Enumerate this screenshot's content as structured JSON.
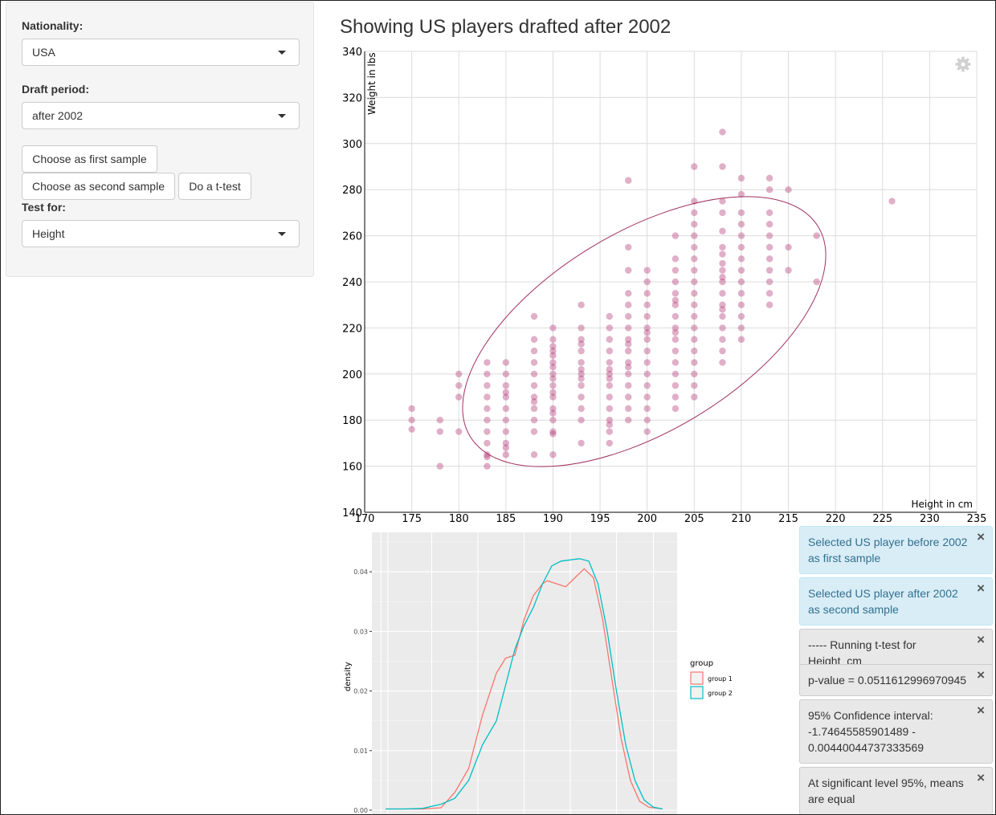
{
  "sidebar": {
    "nationality": {
      "label": "Nationality:",
      "value": "USA"
    },
    "draft_period": {
      "label": "Draft period:",
      "value": "after 2002"
    },
    "buttons": {
      "first": "Choose as first sample",
      "second": "Choose as second sample",
      "ttest": "Do a t-test"
    },
    "test_for": {
      "label": "Test for:",
      "value": "Height"
    }
  },
  "plot": {
    "title": "Showing US players drafted after 2002",
    "icon": "gear-icon"
  },
  "chart_data": [
    {
      "type": "scatter",
      "xlabel": "Height in cm",
      "ylabel": "Weight in lbs",
      "xlim": [
        170,
        235
      ],
      "ylim": [
        140,
        340
      ],
      "x_ticks": [
        "170",
        "175",
        "180",
        "185",
        "190",
        "195",
        "200",
        "205",
        "210",
        "215",
        "220",
        "225",
        "230",
        "235"
      ],
      "y_ticks": [
        "140",
        "160",
        "180",
        "200",
        "220",
        "240",
        "260",
        "280",
        "300",
        "320",
        "340"
      ],
      "grid": true,
      "point_color": "#b5407b",
      "ellipse": {
        "center": [
          200.5,
          223
        ],
        "semi_axes_px": null,
        "color": "#a0305f"
      },
      "points": [
        [
          175,
          185
        ],
        [
          175,
          180
        ],
        [
          175,
          176
        ],
        [
          178,
          180
        ],
        [
          178,
          175
        ],
        [
          178,
          160
        ],
        [
          180,
          200
        ],
        [
          180,
          195
        ],
        [
          180,
          190
        ],
        [
          180,
          175
        ],
        [
          183,
          205
        ],
        [
          183,
          200
        ],
        [
          183,
          195
        ],
        [
          183,
          190
        ],
        [
          183,
          185
        ],
        [
          183,
          180
        ],
        [
          183,
          175
        ],
        [
          183,
          170
        ],
        [
          183,
          165
        ],
        [
          183,
          164
        ],
        [
          183,
          160
        ],
        [
          185,
          205
        ],
        [
          185,
          200
        ],
        [
          185,
          195
        ],
        [
          185,
          192
        ],
        [
          185,
          190
        ],
        [
          185,
          185
        ],
        [
          185,
          180
        ],
        [
          185,
          175
        ],
        [
          185,
          170
        ],
        [
          185,
          168
        ],
        [
          185,
          165
        ],
        [
          188,
          225
        ],
        [
          188,
          215
        ],
        [
          188,
          210
        ],
        [
          188,
          205
        ],
        [
          188,
          200
        ],
        [
          188,
          195
        ],
        [
          188,
          190
        ],
        [
          188,
          188
        ],
        [
          188,
          185
        ],
        [
          188,
          180
        ],
        [
          188,
          175
        ],
        [
          188,
          165
        ],
        [
          190,
          220
        ],
        [
          190,
          215
        ],
        [
          190,
          212
        ],
        [
          190,
          210
        ],
        [
          190,
          208
        ],
        [
          190,
          205
        ],
        [
          190,
          203
        ],
        [
          190,
          200
        ],
        [
          190,
          198
        ],
        [
          190,
          195
        ],
        [
          190,
          192
        ],
        [
          190,
          190
        ],
        [
          190,
          185
        ],
        [
          190,
          183
        ],
        [
          190,
          180
        ],
        [
          190,
          175
        ],
        [
          190,
          174
        ],
        [
          190,
          165
        ],
        [
          193,
          230
        ],
        [
          193,
          220
        ],
        [
          193,
          215
        ],
        [
          193,
          213
        ],
        [
          193,
          210
        ],
        [
          193,
          205
        ],
        [
          193,
          202
        ],
        [
          193,
          200
        ],
        [
          193,
          198
        ],
        [
          193,
          195
        ],
        [
          193,
          190
        ],
        [
          193,
          185
        ],
        [
          193,
          180
        ],
        [
          193,
          170
        ],
        [
          196,
          225
        ],
        [
          196,
          220
        ],
        [
          196,
          215
        ],
        [
          196,
          210
        ],
        [
          196,
          205
        ],
        [
          196,
          202
        ],
        [
          196,
          200
        ],
        [
          196,
          198
        ],
        [
          196,
          195
        ],
        [
          196,
          190
        ],
        [
          196,
          185
        ],
        [
          196,
          180
        ],
        [
          196,
          178
        ],
        [
          196,
          175
        ],
        [
          196,
          170
        ],
        [
          198,
          284
        ],
        [
          198,
          255
        ],
        [
          198,
          245
        ],
        [
          198,
          235
        ],
        [
          198,
          230
        ],
        [
          198,
          225
        ],
        [
          198,
          220
        ],
        [
          198,
          215
        ],
        [
          198,
          213
        ],
        [
          198,
          210
        ],
        [
          198,
          205
        ],
        [
          198,
          203
        ],
        [
          198,
          200
        ],
        [
          198,
          195
        ],
        [
          198,
          190
        ],
        [
          198,
          185
        ],
        [
          198,
          180
        ],
        [
          200,
          245
        ],
        [
          200,
          240
        ],
        [
          200,
          235
        ],
        [
          200,
          230
        ],
        [
          200,
          225
        ],
        [
          200,
          220
        ],
        [
          200,
          218
        ],
        [
          200,
          215
        ],
        [
          200,
          210
        ],
        [
          200,
          205
        ],
        [
          200,
          200
        ],
        [
          200,
          195
        ],
        [
          200,
          190
        ],
        [
          200,
          185
        ],
        [
          200,
          180
        ],
        [
          200,
          175
        ],
        [
          203,
          260
        ],
        [
          203,
          250
        ],
        [
          203,
          245
        ],
        [
          203,
          240
        ],
        [
          203,
          235
        ],
        [
          203,
          232
        ],
        [
          203,
          230
        ],
        [
          203,
          225
        ],
        [
          203,
          220
        ],
        [
          203,
          218
        ],
        [
          203,
          215
        ],
        [
          203,
          210
        ],
        [
          203,
          205
        ],
        [
          203,
          200
        ],
        [
          203,
          195
        ],
        [
          203,
          190
        ],
        [
          203,
          185
        ],
        [
          205,
          290
        ],
        [
          205,
          275
        ],
        [
          205,
          270
        ],
        [
          205,
          265
        ],
        [
          205,
          260
        ],
        [
          205,
          255
        ],
        [
          205,
          250
        ],
        [
          205,
          245
        ],
        [
          205,
          240
        ],
        [
          205,
          235
        ],
        [
          205,
          230
        ],
        [
          205,
          225
        ],
        [
          205,
          220
        ],
        [
          205,
          215
        ],
        [
          205,
          210
        ],
        [
          205,
          205
        ],
        [
          205,
          200
        ],
        [
          205,
          195
        ],
        [
          205,
          190
        ],
        [
          208,
          305
        ],
        [
          208,
          290
        ],
        [
          208,
          275
        ],
        [
          208,
          270
        ],
        [
          208,
          262
        ],
        [
          208,
          255
        ],
        [
          208,
          252
        ],
        [
          208,
          248
        ],
        [
          208,
          245
        ],
        [
          208,
          242
        ],
        [
          208,
          240
        ],
        [
          208,
          235
        ],
        [
          208,
          230
        ],
        [
          208,
          228
        ],
        [
          208,
          225
        ],
        [
          208,
          220
        ],
        [
          208,
          215
        ],
        [
          208,
          210
        ],
        [
          208,
          205
        ],
        [
          210,
          285
        ],
        [
          210,
          278
        ],
        [
          210,
          270
        ],
        [
          210,
          265
        ],
        [
          210,
          260
        ],
        [
          210,
          255
        ],
        [
          210,
          250
        ],
        [
          210,
          245
        ],
        [
          210,
          240
        ],
        [
          210,
          235
        ],
        [
          210,
          230
        ],
        [
          210,
          225
        ],
        [
          210,
          220
        ],
        [
          210,
          215
        ],
        [
          213,
          285
        ],
        [
          213,
          280
        ],
        [
          213,
          270
        ],
        [
          213,
          265
        ],
        [
          213,
          260
        ],
        [
          213,
          255
        ],
        [
          213,
          250
        ],
        [
          213,
          245
        ],
        [
          213,
          240
        ],
        [
          213,
          235
        ],
        [
          213,
          230
        ],
        [
          215,
          280
        ],
        [
          215,
          255
        ],
        [
          215,
          245
        ],
        [
          218,
          260
        ],
        [
          218,
          240
        ],
        [
          226,
          275
        ]
      ]
    },
    {
      "type": "line",
      "ylabel": "density",
      "ylim": [
        0,
        0.045
      ],
      "y_ticks": [
        "0.00",
        "0.01",
        "0.02",
        "0.03",
        "0.04"
      ],
      "legend": {
        "title": "group",
        "placement": "right"
      },
      "series": [
        {
          "name": "group 1",
          "color": "#f8766d",
          "points": [
            [
              0,
              0.0002
            ],
            [
              4,
              0.0002
            ],
            [
              8,
              0.0002
            ],
            [
              12,
              0.0004
            ],
            [
              15,
              0.003
            ],
            [
              18,
              0.007
            ],
            [
              21,
              0.016
            ],
            [
              24,
              0.023
            ],
            [
              26,
              0.0255
            ],
            [
              28,
              0.026
            ],
            [
              30,
              0.032
            ],
            [
              32,
              0.036
            ],
            [
              34,
              0.038
            ],
            [
              35,
              0.0385
            ],
            [
              37,
              0.038
            ],
            [
              39,
              0.0375
            ],
            [
              41,
              0.039
            ],
            [
              43,
              0.0405
            ],
            [
              45,
              0.039
            ],
            [
              47,
              0.032
            ],
            [
              49,
              0.022
            ],
            [
              51,
              0.012
            ],
            [
              53,
              0.005
            ],
            [
              55,
              0.0015
            ],
            [
              57,
              0.0005
            ],
            [
              60,
              0.0002
            ]
          ]
        },
        {
          "name": "group 2",
          "color": "#00bfc4",
          "points": [
            [
              0,
              0.0002
            ],
            [
              4,
              0.0002
            ],
            [
              8,
              0.0003
            ],
            [
              12,
              0.001
            ],
            [
              15,
              0.002
            ],
            [
              18,
              0.005
            ],
            [
              21,
              0.011
            ],
            [
              24,
              0.015
            ],
            [
              26,
              0.021
            ],
            [
              28,
              0.027
            ],
            [
              30,
              0.031
            ],
            [
              32,
              0.034
            ],
            [
              34,
              0.038
            ],
            [
              36,
              0.041
            ],
            [
              38,
              0.0418
            ],
            [
              40,
              0.042
            ],
            [
              42,
              0.0422
            ],
            [
              44,
              0.0418
            ],
            [
              46,
              0.038
            ],
            [
              48,
              0.03
            ],
            [
              50,
              0.02
            ],
            [
              52,
              0.011
            ],
            [
              54,
              0.005
            ],
            [
              56,
              0.0017
            ],
            [
              58,
              0.0005
            ],
            [
              60,
              0.0002
            ]
          ]
        }
      ]
    }
  ],
  "notifications": [
    {
      "type": "info",
      "text": "Selected US player before 2002 as first sample"
    },
    {
      "type": "info",
      "text": "Selected US player after 2002 as second sample"
    },
    {
      "type": "plain",
      "text": "----- Running t-test for Height_cm"
    },
    {
      "type": "plain",
      "text": "p-value = 0.0511612996970945"
    },
    {
      "type": "plain",
      "text": "95% Confidence interval: -1.74645585901489 - 0.00440044737333569"
    },
    {
      "type": "plain",
      "text": "At significant level 95%, means are equal"
    }
  ],
  "close_glyph": "×"
}
